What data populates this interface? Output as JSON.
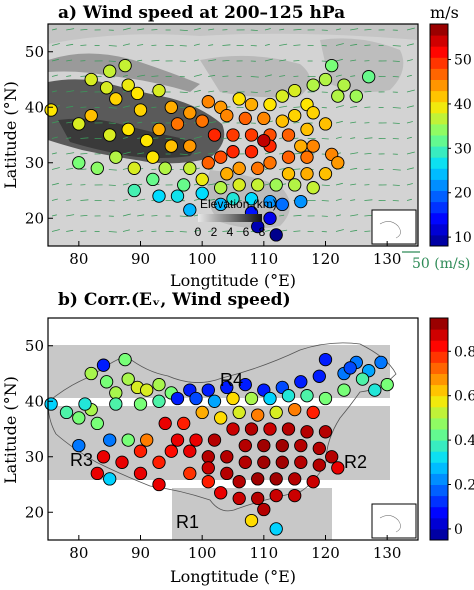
{
  "chart_data": [
    {
      "type": "scatter",
      "title": "a) Wind speed at 200–125 hPa",
      "xlabel": "Longtitude (°E)",
      "ylabel": "Latitude (°N)",
      "xlim": [
        75,
        135
      ],
      "ylim": [
        15,
        55
      ],
      "xticks": [
        "80",
        "90",
        "100",
        "110",
        "120",
        "130"
      ],
      "yticks": [
        "20",
        "30",
        "40",
        "50"
      ],
      "colorbar": {
        "label": "m/s",
        "ticks": [
          "10",
          "20",
          "30",
          "40",
          "50"
        ],
        "range": [
          8,
          58
        ]
      },
      "elevation_legend": {
        "label": "Elevation (km)",
        "ticks": [
          "0",
          "2",
          "4",
          "6",
          "8"
        ]
      },
      "reference_vector": "50 (m/s)",
      "background": "terrain shading with wind vectors (green arrows)",
      "points": [
        [
          75.5,
          39.5,
          40
        ],
        [
          80,
          37,
          38
        ],
        [
          82,
          38.5,
          42
        ],
        [
          82,
          45,
          38
        ],
        [
          84.5,
          43.5,
          38
        ],
        [
          85,
          46.5,
          37
        ],
        [
          87.5,
          47.5,
          37
        ],
        [
          88,
          44,
          39
        ],
        [
          89.5,
          42.5,
          40
        ],
        [
          86,
          41.5,
          41
        ],
        [
          90,
          39.5,
          41
        ],
        [
          93,
          43,
          38
        ],
        [
          95,
          40,
          43
        ],
        [
          93,
          36,
          43
        ],
        [
          96,
          37,
          46
        ],
        [
          98,
          39,
          44
        ],
        [
          100,
          37.5,
          46
        ],
        [
          101,
          41,
          45
        ],
        [
          103,
          40,
          44
        ],
        [
          106,
          41.5,
          40
        ],
        [
          108,
          40.5,
          43
        ],
        [
          111,
          40.5,
          40
        ],
        [
          113,
          42,
          38
        ],
        [
          115,
          43,
          38
        ],
        [
          118,
          44,
          36
        ],
        [
          120,
          45,
          36
        ],
        [
          121,
          47.5,
          33
        ],
        [
          123,
          44,
          36
        ],
        [
          125,
          42,
          35
        ],
        [
          127,
          45.5,
          32
        ],
        [
          122,
          42,
          36
        ],
        [
          117,
          40.5,
          40
        ],
        [
          113,
          37.5,
          42
        ],
        [
          115,
          38.5,
          41
        ],
        [
          118,
          39,
          41
        ],
        [
          120,
          37,
          42
        ],
        [
          117,
          36,
          42
        ],
        [
          104,
          38.5,
          45
        ],
        [
          107,
          38,
          47
        ],
        [
          110,
          38,
          45
        ],
        [
          102,
          35,
          50
        ],
        [
          105,
          35,
          49
        ],
        [
          108,
          35,
          49
        ],
        [
          111,
          35,
          48
        ],
        [
          114,
          35,
          47
        ],
        [
          116,
          33,
          43
        ],
        [
          118,
          33,
          45
        ],
        [
          121,
          31.5,
          45
        ],
        [
          117,
          31,
          46
        ],
        [
          114,
          31,
          47
        ],
        [
          111,
          33,
          50
        ],
        [
          110,
          34,
          55
        ],
        [
          108,
          32,
          50
        ],
        [
          105,
          32,
          50
        ],
        [
          103,
          31,
          48
        ],
        [
          101,
          30,
          47
        ],
        [
          104,
          28,
          43
        ],
        [
          106,
          29,
          44
        ],
        [
          109,
          29,
          46
        ],
        [
          111,
          30,
          46
        ],
        [
          114,
          28,
          42
        ],
        [
          117,
          28,
          43
        ],
        [
          120,
          28,
          42
        ],
        [
          112,
          26,
          35
        ],
        [
          115,
          26,
          36
        ],
        [
          118,
          25.5,
          37
        ],
        [
          109,
          26,
          37
        ],
        [
          106,
          26,
          38
        ],
        [
          103,
          25.5,
          36
        ],
        [
          100,
          27,
          39
        ],
        [
          98,
          29,
          37
        ],
        [
          105,
          23.5,
          28
        ],
        [
          108,
          23.5,
          26
        ],
        [
          111,
          23,
          22
        ],
        [
          113,
          22.5,
          20
        ],
        [
          116,
          23,
          22
        ],
        [
          108,
          21,
          15
        ],
        [
          111,
          20,
          13
        ],
        [
          109,
          18.5,
          10
        ],
        [
          112,
          17,
          8
        ],
        [
          80,
          30,
          33
        ],
        [
          83,
          29,
          34
        ],
        [
          86,
          31,
          36
        ],
        [
          89,
          29,
          38
        ],
        [
          92,
          31,
          40
        ],
        [
          95,
          33,
          42
        ],
        [
          98,
          33,
          44
        ],
        [
          85,
          35,
          38
        ],
        [
          88,
          36,
          40
        ],
        [
          91,
          34,
          40
        ],
        [
          94,
          29,
          36
        ],
        [
          97,
          26,
          32
        ],
        [
          100,
          24.5,
          26
        ],
        [
          103,
          22.5,
          24
        ],
        [
          93,
          24,
          26
        ],
        [
          96,
          24,
          27
        ],
        [
          98,
          21.5,
          24
        ],
        [
          92,
          27,
          32
        ],
        [
          89,
          25,
          30
        ],
        [
          122,
          30,
          44
        ]
      ]
    },
    {
      "type": "scatter",
      "title": "b) Corr.(Eᵥ, Wind speed)",
      "xlabel": "Longtitude (°E)",
      "ylabel": "Latitude (°N)",
      "xlim": [
        75,
        135
      ],
      "ylim": [
        15,
        55
      ],
      "xticks": [
        "80",
        "90",
        "100",
        "110",
        "120",
        "130"
      ],
      "yticks": [
        "20",
        "30",
        "40",
        "50"
      ],
      "colorbar": {
        "ticks": [
          "0",
          "0.2",
          "0.4",
          "0.6",
          "0.8"
        ],
        "range": [
          -0.05,
          0.95
        ]
      },
      "regions": [
        "R1",
        "R2",
        "R3",
        "R4"
      ],
      "points": [
        [
          75.5,
          39.5,
          0.3
        ],
        [
          80,
          37,
          0.45
        ],
        [
          82,
          38.5,
          0.5
        ],
        [
          82,
          45,
          0.5
        ],
        [
          84.5,
          43.5,
          0.45
        ],
        [
          84,
          46.5,
          0.1
        ],
        [
          87.5,
          47.5,
          0.45
        ],
        [
          88,
          44,
          0.5
        ],
        [
          89.5,
          42.5,
          0.55
        ],
        [
          86,
          41.5,
          0.5
        ],
        [
          91,
          42,
          0.55
        ],
        [
          93,
          43,
          0.5
        ],
        [
          95,
          41.5,
          0.45
        ],
        [
          98,
          42,
          0.1
        ],
        [
          101,
          42,
          0.1
        ],
        [
          104,
          42.5,
          0.1
        ],
        [
          107,
          43,
          0.1
        ],
        [
          110,
          42,
          0.1
        ],
        [
          113,
          42.5,
          0.15
        ],
        [
          116,
          43.5,
          0.1
        ],
        [
          119,
          44.5,
          0.1
        ],
        [
          120,
          47.5,
          0.1
        ],
        [
          123,
          45,
          0.2
        ],
        [
          125,
          47,
          0.2
        ],
        [
          127,
          45.5,
          0.25
        ],
        [
          129,
          47,
          0.2
        ],
        [
          124,
          46,
          0.15
        ],
        [
          126,
          44,
          0.4
        ],
        [
          128,
          42,
          0.35
        ],
        [
          130,
          43,
          0.45
        ],
        [
          123,
          42,
          0.45
        ],
        [
          120,
          40.5,
          0.45
        ],
        [
          117,
          41,
          0.4
        ],
        [
          114,
          41,
          0.35
        ],
        [
          111,
          40.5,
          0.3
        ],
        [
          108,
          40.5,
          0.5
        ],
        [
          105,
          40.5,
          0.6
        ],
        [
          102,
          40,
          0.25
        ],
        [
          99,
          40.5,
          0.15
        ],
        [
          96,
          40.5,
          0.1
        ],
        [
          93,
          40,
          0.4
        ],
        [
          90,
          39.5,
          0.45
        ],
        [
          86,
          39.5,
          0.4
        ],
        [
          81,
          39.5,
          0.35
        ],
        [
          78,
          38,
          0.4
        ],
        [
          83,
          36,
          0.45
        ],
        [
          85,
          33,
          0.2
        ],
        [
          88,
          33,
          0.45
        ],
        [
          91,
          33,
          0.7
        ],
        [
          94,
          36,
          0.85
        ],
        [
          97,
          36,
          0.8
        ],
        [
          100,
          38,
          0.65
        ],
        [
          103,
          37,
          0.6
        ],
        [
          106,
          38,
          0.55
        ],
        [
          109,
          37.5,
          0.7
        ],
        [
          112,
          38,
          0.55
        ],
        [
          115,
          38.5,
          0.7
        ],
        [
          118,
          38,
          0.8
        ],
        [
          96,
          33,
          0.85
        ],
        [
          99,
          33,
          0.85
        ],
        [
          102,
          33,
          0.9
        ],
        [
          105,
          35,
          0.88
        ],
        [
          108,
          35,
          0.9
        ],
        [
          111,
          35,
          0.88
        ],
        [
          114,
          35,
          0.9
        ],
        [
          117,
          34.5,
          0.9
        ],
        [
          120,
          34.5,
          0.9
        ],
        [
          101,
          30,
          0.9
        ],
        [
          104,
          30,
          0.9
        ],
        [
          107,
          32,
          0.9
        ],
        [
          110,
          32,
          0.92
        ],
        [
          113,
          32,
          0.92
        ],
        [
          116,
          32,
          0.9
        ],
        [
          119,
          31.5,
          0.9
        ],
        [
          121,
          30,
          0.9
        ],
        [
          122,
          28,
          0.85
        ],
        [
          104,
          27,
          0.9
        ],
        [
          107,
          29,
          0.9
        ],
        [
          110,
          29,
          0.92
        ],
        [
          113,
          29,
          0.92
        ],
        [
          116,
          29,
          0.9
        ],
        [
          119,
          28.5,
          0.9
        ],
        [
          106,
          25.5,
          0.9
        ],
        [
          109,
          26,
          0.92
        ],
        [
          112,
          26,
          0.92
        ],
        [
          115,
          26,
          0.9
        ],
        [
          118,
          25.5,
          0.88
        ],
        [
          101,
          25.5,
          0.8
        ],
        [
          98,
          27,
          0.78
        ],
        [
          103,
          23.5,
          0.85
        ],
        [
          106,
          22.5,
          0.88
        ],
        [
          109,
          22.5,
          0.9
        ],
        [
          112,
          23,
          0.88
        ],
        [
          115,
          23,
          0.88
        ],
        [
          110,
          20.5,
          0.9
        ],
        [
          108,
          18.5,
          0.6
        ],
        [
          112,
          17,
          0.3
        ],
        [
          84,
          30,
          0.85
        ],
        [
          87,
          29,
          0.85
        ],
        [
          90,
          27,
          0.85
        ],
        [
          93,
          25,
          0.85
        ],
        [
          90,
          31,
          0.8
        ],
        [
          93,
          29,
          0.8
        ],
        [
          83,
          27,
          0.85
        ],
        [
          85,
          26,
          0.3
        ],
        [
          80,
          32,
          0.2
        ],
        [
          95,
          31,
          0.82
        ],
        [
          98,
          31,
          0.85
        ],
        [
          101,
          28,
          0.88
        ]
      ]
    }
  ]
}
